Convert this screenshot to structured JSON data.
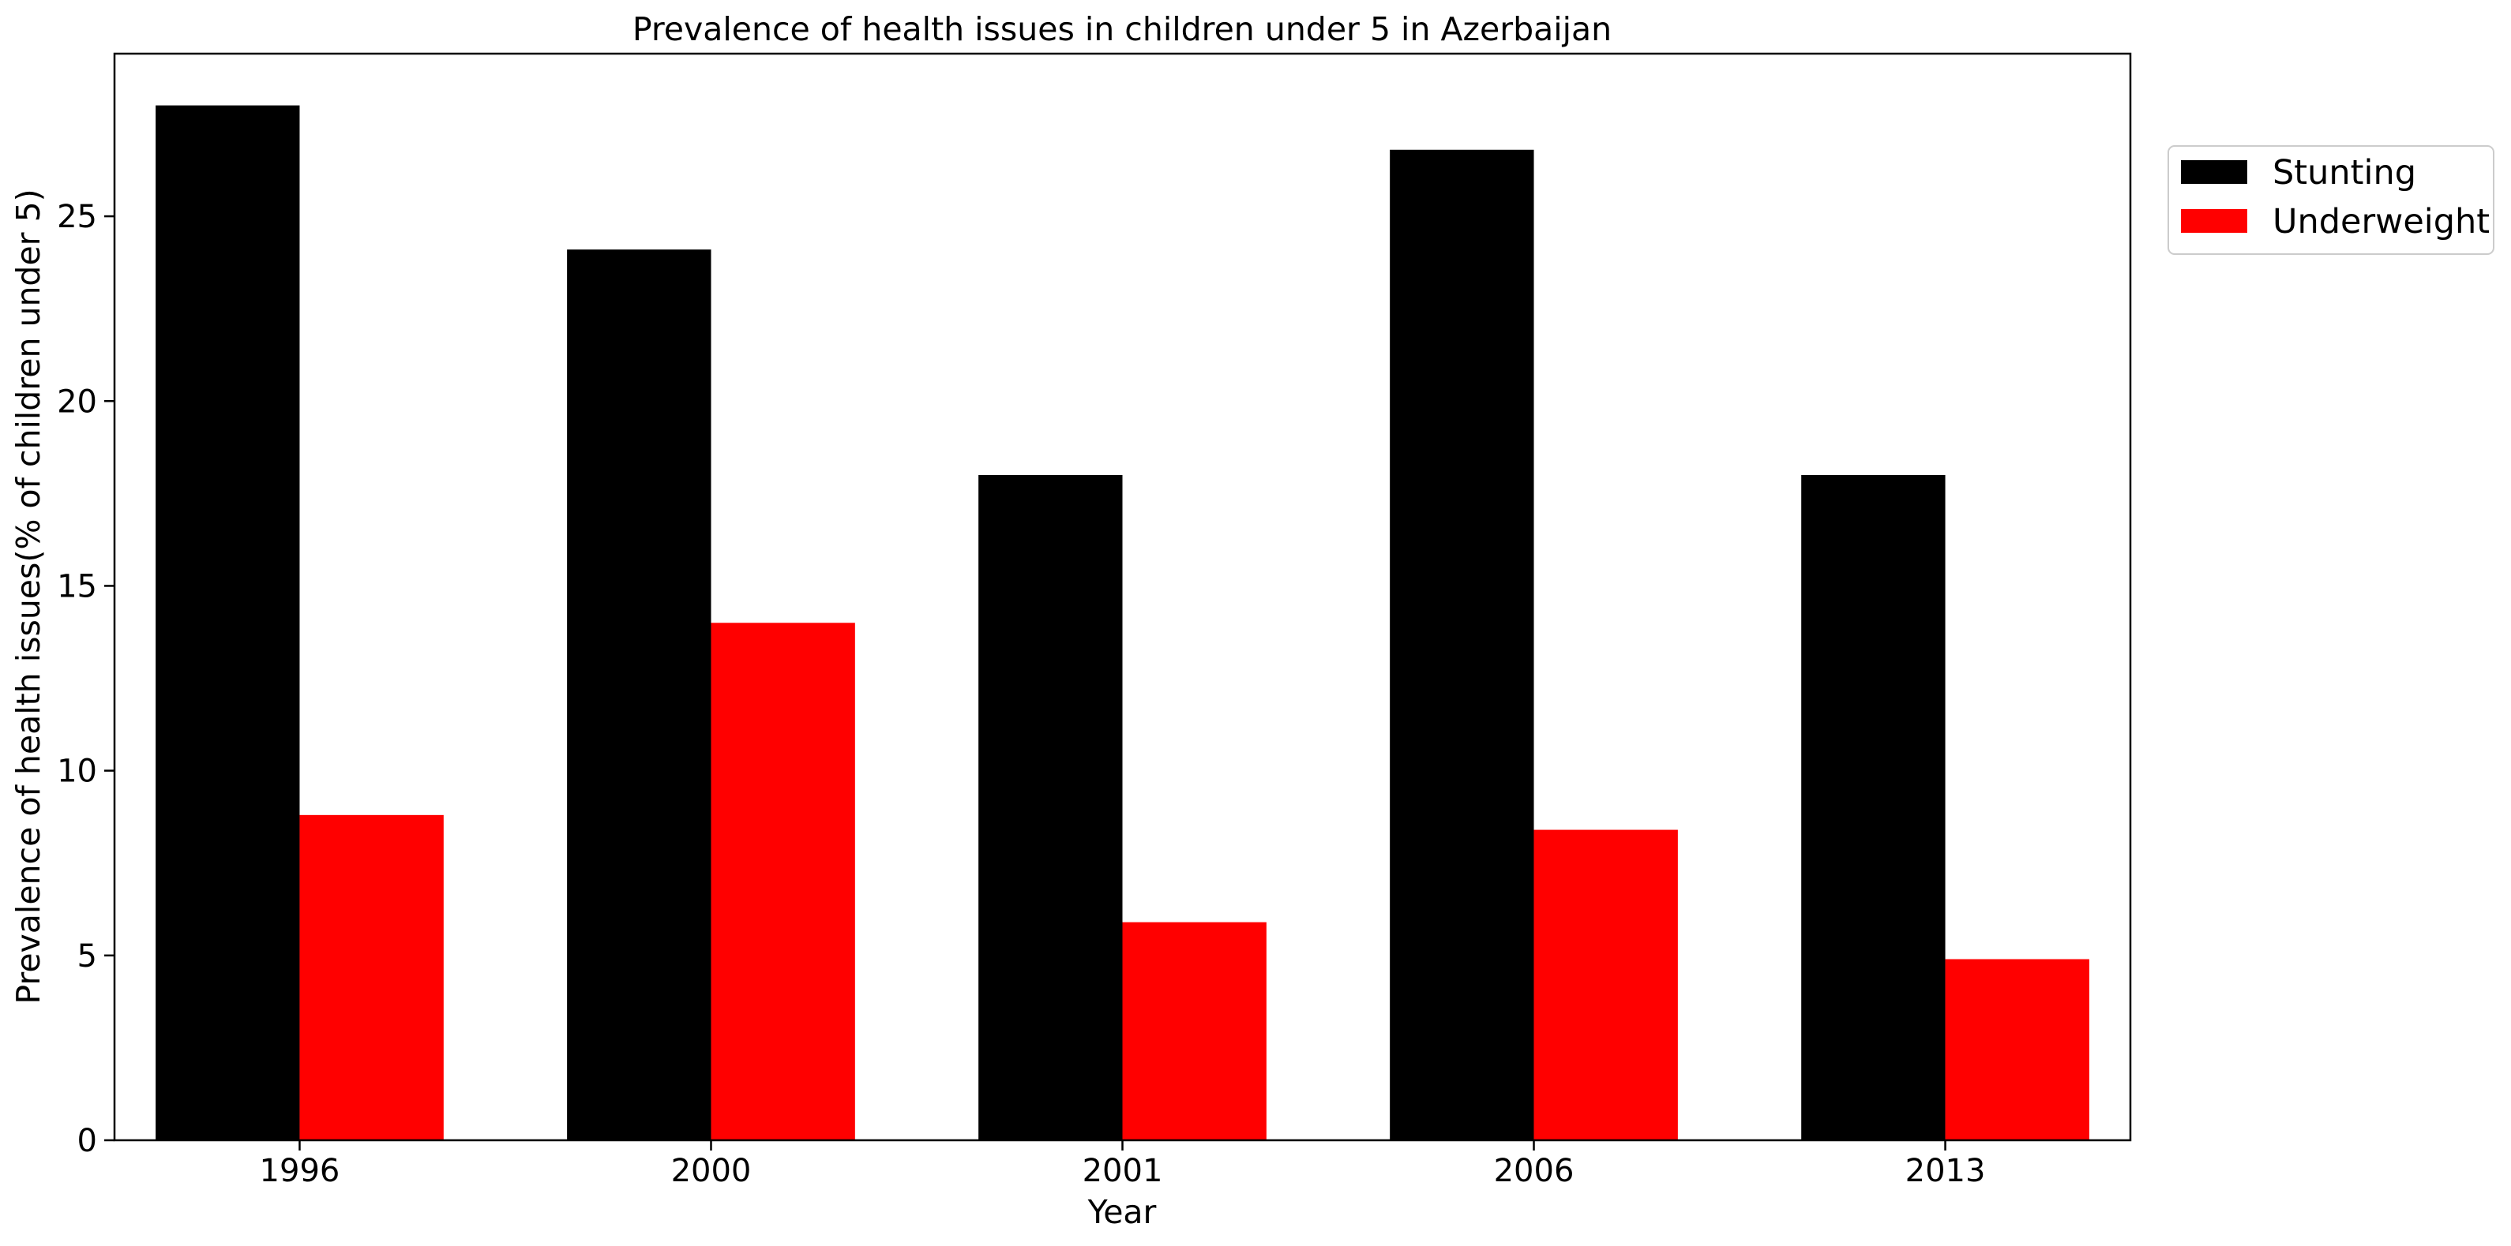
{
  "chart_data": {
    "type": "bar",
    "title": "Prevalence of health issues in children under 5 in Azerbaijan",
    "xlabel": "Year",
    "ylabel": "Prevalence of health issues(% of children under 5)",
    "categories": [
      "1996",
      "2000",
      "2001",
      "2006",
      "2013"
    ],
    "series": [
      {
        "name": "Stunting",
        "color": "#000000",
        "values": [
          28.0,
          24.1,
          18.0,
          26.8,
          18.0
        ]
      },
      {
        "name": "Underweight",
        "color": "#ff0000",
        "values": [
          8.8,
          14.0,
          5.9,
          8.4,
          4.9
        ]
      }
    ],
    "ylim": [
      0,
      29.4
    ],
    "yticks": [
      0,
      5,
      10,
      15,
      20,
      25
    ],
    "grid": false,
    "legend_position": "outside upper right"
  }
}
